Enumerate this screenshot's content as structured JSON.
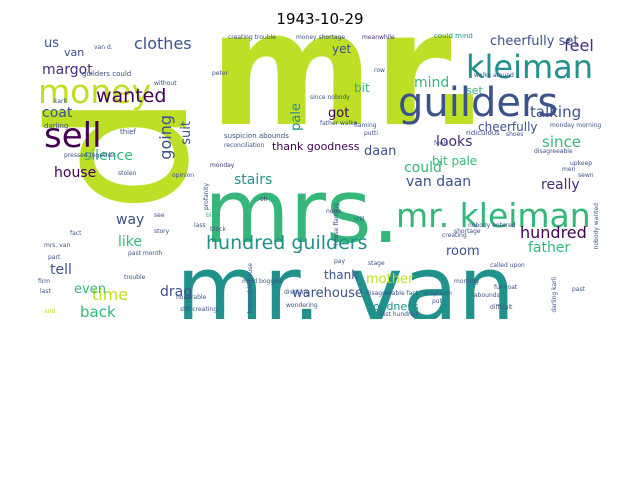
{
  "title": "1943-10-29",
  "palette": {
    "lime": "#bddf26",
    "green": "#35b779",
    "teal": "#21918c",
    "blue": "#3b528b",
    "purple": "#472d7b",
    "dark": "#440154",
    "yellow": "#fde725"
  },
  "words": {
    "mr": "mr.",
    "d": "d",
    "mrs": "mrs.",
    "mr_van": "mr. van",
    "guilders": "guilders",
    "mr_kleiman": "mr. kleiman",
    "kleiman": "kleiman",
    "money": "money",
    "sell": "sell",
    "hundred_guilders": "hundred guilders",
    "wanted": "wanted",
    "clothes": "clothes",
    "margot": "margot",
    "us": "us",
    "van": "van",
    "feel": "feel",
    "cheerfully_set": "cheerfully set",
    "talking": "talking",
    "mind": "mind",
    "got": "got",
    "going": "going",
    "suit": "suit",
    "coat": "coat",
    "silence": "silence",
    "house": "house",
    "stairs": "stairs",
    "van_daan": "van daan",
    "daan": "daan",
    "bit_pale": "bit pale",
    "could": "could",
    "looks": "looks",
    "since": "since",
    "really": "really",
    "hundred": "hundred",
    "father": "father",
    "room": "room",
    "mother": "mother",
    "warehouse": "warehouse",
    "time": "time",
    "back": "back",
    "tell": "tell",
    "even": "even",
    "like": "like",
    "way": "way",
    "drag": "drag",
    "thank_goodness": "thank goodness",
    "thank": "thank",
    "goodness": "goodness",
    "pale": "pale",
    "yet": "yet",
    "bit": "bit",
    "set": "set",
    "cheerfully": "cheerfully",
    "creating_trouble": "creating trouble",
    "money_shortage": "money shortage",
    "meanwhile": "meanwhile",
    "could_mind": "could mind",
    "van_d": "van d.",
    "guilders_could": "guilders could",
    "peter": "peter",
    "without": "without",
    "suspicion_abounds": "suspicion abounds",
    "reconciliation": "reconciliation",
    "opinion": "opinion",
    "monday": "monday",
    "stolen": "stolen",
    "thief": "thief",
    "darling": "darling",
    "karli": "karli",
    "fact": "fact",
    "part": "part",
    "last": "last",
    "story": "story",
    "see": "see",
    "bike": "bike",
    "block": "block",
    "past_month": "past month",
    "still_creating": "still creating",
    "mind_boggles": "mind boggles",
    "wondering": "wondering",
    "honorable": "honorable",
    "trouble": "trouble",
    "oh": "oh",
    "none": "none",
    "put": "put",
    "stage": "stage",
    "last_hundred": "last hundred",
    "disagreeable_fact": "disagreeable fact",
    "disagreeable": "disagreeable",
    "shortage": "shortage",
    "suspicion": "suspicion",
    "creating": "creating",
    "nobody_entered": "nobody entered",
    "nobody_wanted": "nobody wanted",
    "difficult": "difficult",
    "fur_coat": "fur coat",
    "past": "past",
    "darling_karli": "darling karli",
    "upkeep": "upkeep",
    "ridiculous": "ridiculous",
    "monday_morning": "monday morning",
    "feels": "feels",
    "shoes": "shoes",
    "flaming": "flaming",
    "row": "row",
    "father_walks": "father walks",
    "putti": "putti",
    "mrs_van": "mrs. van",
    "and": "and",
    "firm": "firm",
    "lass": "lass",
    "scarcely": "scarcely",
    "profanity": "profanity",
    "dressing": "dressing",
    "cellar": "cellar",
    "mr_van_d": "mr. van d.",
    "honorable_house": "honorable house",
    "moment": "moment",
    "morning": "morning",
    "men": "men",
    "abounds": "abounds",
    "sewn": "sewn",
    "since_nobody": "since nobody",
    "walks_around": "walks around",
    "still": "still",
    "called_upon": "called upon",
    "pressed_together": "pressed together",
    "mrs_van_d": "mrs van d",
    "also": "also",
    "pay": "pay",
    "house_flaming": "house flaming"
  }
}
